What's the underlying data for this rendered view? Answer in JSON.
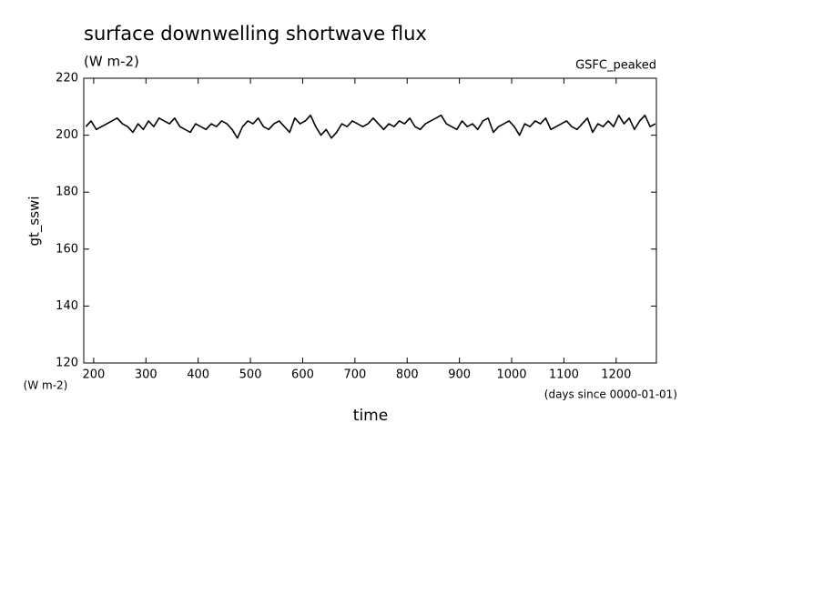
{
  "chart_data": {
    "type": "line",
    "title": "surface downwelling shortwave flux",
    "subtitle": "(W m-2)",
    "annotation": "GSFC_peaked",
    "y_label": "gt_sswi",
    "y_unit": "(W m-2)",
    "x_label": "time",
    "x_unit": "(days since 0000-01-01)",
    "xlim": [
      181,
      1277
    ],
    "ylim": [
      120,
      220
    ],
    "xticks": [
      200,
      300,
      400,
      500,
      600,
      700,
      800,
      900,
      1000,
      1100,
      1200
    ],
    "yticks": [
      120,
      140,
      160,
      180,
      200,
      220
    ],
    "series": [
      {
        "color": "#000000",
        "x": [
          185,
          195,
          205,
          215,
          225,
          235,
          245,
          255,
          265,
          275,
          285,
          295,
          305,
          315,
          325,
          335,
          345,
          355,
          365,
          375,
          385,
          395,
          405,
          415,
          425,
          435,
          445,
          455,
          465,
          475,
          485,
          495,
          505,
          515,
          525,
          535,
          545,
          555,
          565,
          575,
          585,
          595,
          605,
          615,
          625,
          635,
          645,
          655,
          665,
          675,
          685,
          695,
          705,
          715,
          725,
          735,
          745,
          755,
          765,
          775,
          785,
          795,
          805,
          815,
          825,
          835,
          845,
          855,
          865,
          875,
          885,
          895,
          905,
          915,
          925,
          935,
          945,
          955,
          965,
          975,
          985,
          995,
          1005,
          1015,
          1025,
          1035,
          1045,
          1055,
          1065,
          1075,
          1085,
          1095,
          1105,
          1115,
          1125,
          1135,
          1145,
          1155,
          1165,
          1175,
          1185,
          1195,
          1205,
          1215,
          1225,
          1235,
          1245,
          1255,
          1265,
          1275
        ],
        "values": [
          203,
          205,
          202,
          203,
          204,
          205,
          206,
          204,
          203,
          201,
          204,
          202,
          205,
          203,
          206,
          205,
          204,
          206,
          203,
          202,
          201,
          204,
          203,
          202,
          204,
          203,
          205,
          204,
          202,
          199,
          203,
          205,
          204,
          206,
          203,
          202,
          204,
          205,
          203,
          201,
          206,
          204,
          205,
          207,
          203,
          200,
          202,
          199,
          201,
          204,
          203,
          205,
          204,
          203,
          204,
          206,
          204,
          202,
          204,
          203,
          205,
          204,
          206,
          203,
          202,
          204,
          205,
          206,
          207,
          204,
          203,
          202,
          205,
          203,
          204,
          202,
          205,
          206,
          201,
          203,
          204,
          205,
          203,
          200,
          204,
          203,
          205,
          204,
          206,
          202,
          203,
          204,
          205,
          203,
          202,
          204,
          206,
          201,
          204,
          203,
          205,
          203,
          207,
          204,
          206,
          202,
          205,
          207,
          203,
          204
        ]
      }
    ]
  }
}
